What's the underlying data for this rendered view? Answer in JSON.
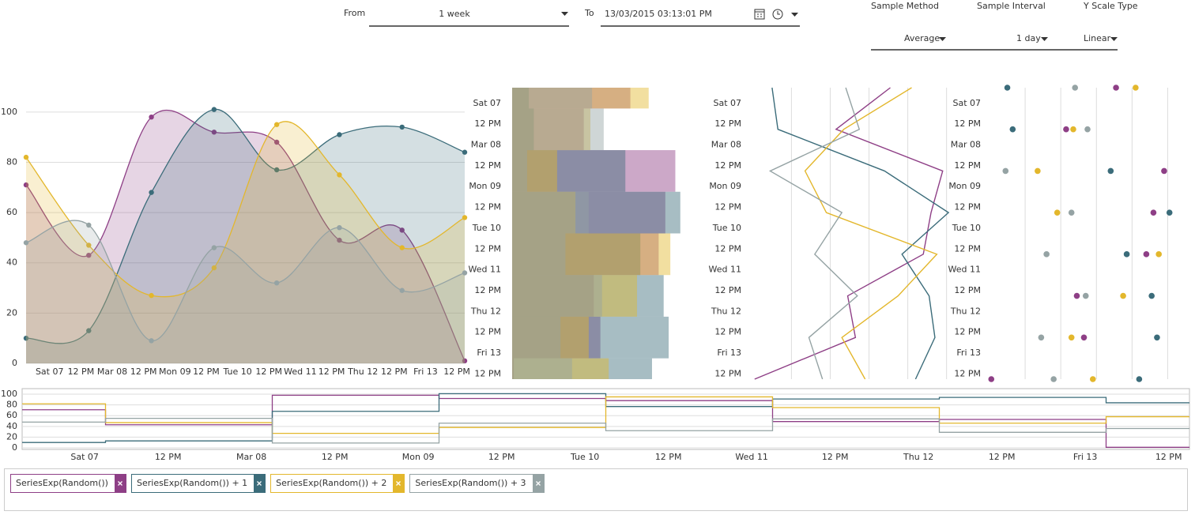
{
  "controls": {
    "from_label": "From",
    "range": "1 week",
    "to_label": "To",
    "to_value": "13/03/2015 03:13:01 PM",
    "sample_method_label": "Sample Method",
    "sample_method": "Average",
    "sample_interval_label": "Sample Interval",
    "sample_interval": "1 day",
    "y_scale_label": "Y Scale Type",
    "y_scale": "Linear"
  },
  "chart_data": [
    {
      "type": "area",
      "x": [
        0,
        24,
        48,
        72,
        96,
        120,
        144,
        168
      ],
      "xlim": [
        0,
        168
      ],
      "xticks": [
        {
          "value": 9,
          "label": "Sat 07"
        },
        {
          "value": 21,
          "label": "12 PM"
        },
        {
          "value": 33,
          "label": "Mar 08"
        },
        {
          "value": 45,
          "label": "12 PM"
        },
        {
          "value": 57,
          "label": "Mon 09"
        },
        {
          "value": 69,
          "label": "12 PM"
        },
        {
          "value": 81,
          "label": "Tue 10"
        },
        {
          "value": 93,
          "label": "12 PM"
        },
        {
          "value": 105,
          "label": "Wed 11"
        },
        {
          "value": 117,
          "label": "12 PM"
        },
        {
          "value": 129,
          "label": "Thu 12"
        },
        {
          "value": 141,
          "label": "12 PM"
        },
        {
          "value": 153,
          "label": "Fri 13"
        },
        {
          "value": 165,
          "label": "12 PM"
        }
      ],
      "ylim": [
        0,
        110
      ],
      "yticks": [
        0,
        20,
        40,
        60,
        80,
        100
      ],
      "grid": true,
      "series": [
        {
          "name": "SeriesExp(Random())",
          "color": "#8e3f86",
          "values": [
            71,
            43,
            98,
            92,
            88,
            49,
            53,
            1
          ]
        },
        {
          "name": "SeriesExp(Random()) + 1",
          "color": "#3b6c7a",
          "values": [
            10,
            13,
            68,
            101,
            77,
            91,
            94,
            84
          ]
        },
        {
          "name": "SeriesExp(Random()) + 2",
          "color": "#e3b72c",
          "values": [
            82,
            47,
            27,
            38,
            95,
            75,
            46,
            58
          ]
        },
        {
          "name": "SeriesExp(Random()) + 3",
          "color": "#95a3a4",
          "values": [
            48,
            55,
            9,
            46,
            32,
            54,
            29,
            36
          ]
        }
      ]
    },
    {
      "type": "bar",
      "orientation": "vertical",
      "x": [
        0,
        24,
        48,
        72,
        96,
        120,
        144,
        168
      ],
      "xlim": [
        0,
        168
      ],
      "xticks": [
        {
          "value": 9,
          "label": "Sat 07"
        },
        {
          "value": 21,
          "label": "12 PM"
        },
        {
          "value": 33,
          "label": "Mar 08"
        },
        {
          "value": 45,
          "label": "12 PM"
        },
        {
          "value": 57,
          "label": "Mon 09"
        },
        {
          "value": 69,
          "label": "12 PM"
        },
        {
          "value": 81,
          "label": "Tue 10"
        },
        {
          "value": 93,
          "label": "12 PM"
        },
        {
          "value": 105,
          "label": "Wed 11"
        },
        {
          "value": 117,
          "label": "12 PM"
        },
        {
          "value": 129,
          "label": "Thu 12"
        },
        {
          "value": 141,
          "label": "12 PM"
        },
        {
          "value": 153,
          "label": "Fri 13"
        },
        {
          "value": 165,
          "label": "12 PM"
        }
      ],
      "ylim": [
        0,
        103
      ],
      "series": [
        {
          "color": "#8e3f86",
          "values": [
            71,
            43,
            98,
            92,
            88,
            49,
            53,
            1
          ]
        },
        {
          "color": "#3b6c7a",
          "values": [
            10,
            13,
            68,
            101,
            77,
            91,
            94,
            84
          ]
        },
        {
          "color": "#e3b72c",
          "values": [
            82,
            47,
            27,
            38,
            95,
            75,
            46,
            58
          ]
        },
        {
          "color": "#95a3a4",
          "values": [
            48,
            55,
            9,
            46,
            32,
            54,
            29,
            36
          ]
        }
      ]
    },
    {
      "type": "line",
      "orientation": "vertical",
      "x": [
        0,
        24,
        48,
        72,
        96,
        120,
        144,
        168
      ],
      "xlim": [
        0,
        168
      ],
      "xticks": [
        {
          "value": 9,
          "label": "Sat 07"
        },
        {
          "value": 21,
          "label": "12 PM"
        },
        {
          "value": 33,
          "label": "Mar 08"
        },
        {
          "value": 45,
          "label": "12 PM"
        },
        {
          "value": 57,
          "label": "Mon 09"
        },
        {
          "value": 69,
          "label": "12 PM"
        },
        {
          "value": 81,
          "label": "Tue 10"
        },
        {
          "value": 93,
          "label": "12 PM"
        },
        {
          "value": 105,
          "label": "Wed 11"
        },
        {
          "value": 117,
          "label": "12 PM"
        },
        {
          "value": 129,
          "label": "Thu 12"
        },
        {
          "value": 141,
          "label": "12 PM"
        },
        {
          "value": 153,
          "label": "Fri 13"
        },
        {
          "value": 165,
          "label": "12 PM"
        }
      ],
      "ylim": [
        -3,
        103
      ],
      "yticks": [
        20,
        40,
        60,
        80,
        100
      ],
      "grid": true,
      "series": [
        {
          "color": "#8e3f86",
          "values": [
            71,
            43,
            98,
            92,
            88,
            49,
            53,
            1
          ]
        },
        {
          "color": "#3b6c7a",
          "values": [
            10,
            13,
            68,
            101,
            77,
            91,
            94,
            84
          ]
        },
        {
          "color": "#e3b72c",
          "values": [
            82,
            47,
            27,
            38,
            95,
            75,
            46,
            58
          ]
        },
        {
          "color": "#95a3a4",
          "values": [
            48,
            55,
            9,
            46,
            32,
            54,
            29,
            36
          ]
        }
      ]
    },
    {
      "type": "scatter",
      "orientation": "vertical",
      "x": [
        0,
        24,
        48,
        72,
        96,
        120,
        144,
        168
      ],
      "xlim": [
        0,
        168
      ],
      "xticks": [
        {
          "value": 9,
          "label": "Sat 07"
        },
        {
          "value": 21,
          "label": "12 PM"
        },
        {
          "value": 33,
          "label": "Mar 08"
        },
        {
          "value": 45,
          "label": "12 PM"
        },
        {
          "value": 57,
          "label": "Mon 09"
        },
        {
          "value": 69,
          "label": "12 PM"
        },
        {
          "value": 81,
          "label": "Tue 10"
        },
        {
          "value": 93,
          "label": "12 PM"
        },
        {
          "value": 105,
          "label": "Wed 11"
        },
        {
          "value": 117,
          "label": "12 PM"
        },
        {
          "value": 129,
          "label": "Thu 12"
        },
        {
          "value": 141,
          "label": "12 PM"
        },
        {
          "value": 153,
          "label": "Fri 13"
        },
        {
          "value": 165,
          "label": "12 PM"
        }
      ],
      "ylim": [
        0,
        110
      ],
      "yticks": [
        20,
        40,
        60,
        80,
        100
      ],
      "grid": true,
      "series": [
        {
          "color": "#8e3f86",
          "values": [
            71,
            43,
            98,
            92,
            88,
            49,
            53,
            1
          ]
        },
        {
          "color": "#3b6c7a",
          "values": [
            10,
            13,
            68,
            101,
            77,
            91,
            94,
            84
          ]
        },
        {
          "color": "#e3b72c",
          "values": [
            82,
            47,
            27,
            38,
            95,
            75,
            46,
            58
          ]
        },
        {
          "color": "#95a3a4",
          "values": [
            48,
            55,
            9,
            46,
            32,
            54,
            29,
            36
          ]
        }
      ]
    },
    {
      "type": "step",
      "x": [
        0,
        24,
        48,
        72,
        96,
        120,
        144,
        168
      ],
      "xlim": [
        0,
        168
      ],
      "xticks": [
        {
          "value": 9,
          "label": "Sat 07"
        },
        {
          "value": 21,
          "label": "12 PM"
        },
        {
          "value": 33,
          "label": "Mar 08"
        },
        {
          "value": 45,
          "label": "12 PM"
        },
        {
          "value": 57,
          "label": "Mon 09"
        },
        {
          "value": 69,
          "label": "12 PM"
        },
        {
          "value": 81,
          "label": "Tue 10"
        },
        {
          "value": 93,
          "label": "12 PM"
        },
        {
          "value": 105,
          "label": "Wed 11"
        },
        {
          "value": 117,
          "label": "12 PM"
        },
        {
          "value": 129,
          "label": "Thu 12"
        },
        {
          "value": 141,
          "label": "12 PM"
        },
        {
          "value": 153,
          "label": "Fri 13"
        },
        {
          "value": 165,
          "label": "12 PM"
        }
      ],
      "ylim": [
        0,
        103
      ],
      "yticks": [
        0,
        20,
        40,
        60,
        80,
        100
      ],
      "grid": true,
      "series": [
        {
          "color": "#8e3f86",
          "values": [
            71,
            43,
            98,
            92,
            88,
            49,
            53,
            1
          ]
        },
        {
          "color": "#3b6c7a",
          "values": [
            10,
            13,
            68,
            101,
            77,
            91,
            94,
            84
          ]
        },
        {
          "color": "#e3b72c",
          "values": [
            82,
            47,
            27,
            38,
            95,
            75,
            46,
            58
          ]
        },
        {
          "color": "#95a3a4",
          "values": [
            48,
            55,
            9,
            46,
            32,
            54,
            29,
            36
          ]
        }
      ]
    }
  ]
}
